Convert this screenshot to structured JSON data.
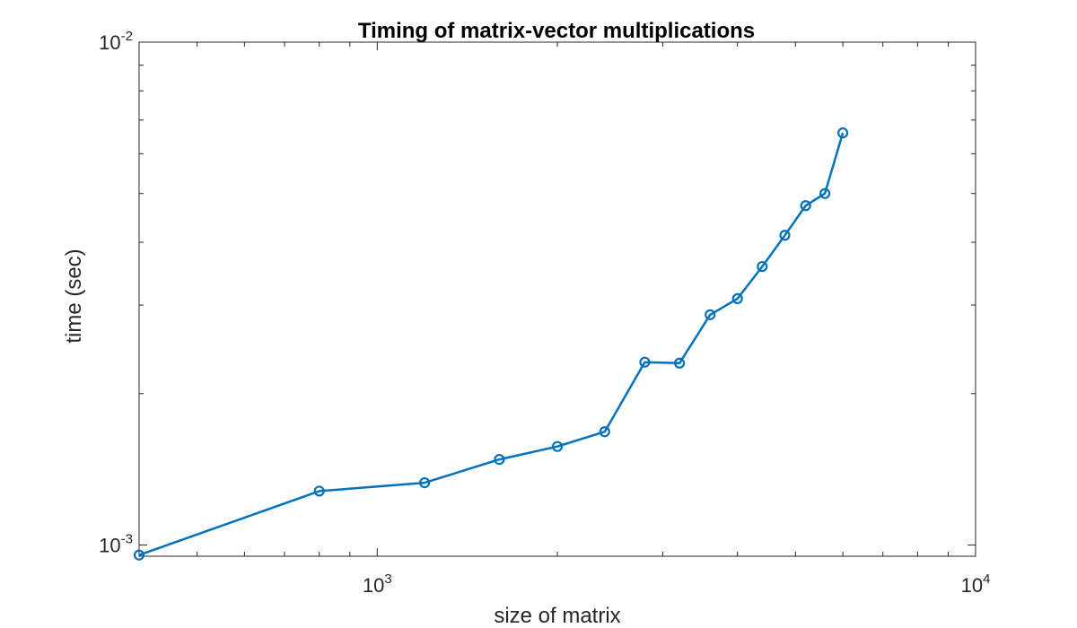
{
  "chart_data": {
    "type": "line",
    "title": "Timing of matrix-vector multiplications",
    "xlabel": "size of matrix",
    "ylabel": "time (sec)",
    "xscale": "log",
    "yscale": "log",
    "xlim": [
      400,
      10000
    ],
    "ylim": [
      0.00095,
      0.01
    ],
    "grid": false,
    "legend": "none",
    "x_tick_labels": [
      {
        "value": 1000,
        "base": "10",
        "exp": "3"
      },
      {
        "value": 10000,
        "base": "10",
        "exp": "4"
      }
    ],
    "y_tick_labels": [
      {
        "value": 0.001,
        "base": "10",
        "exp": "-3"
      },
      {
        "value": 0.01,
        "base": "10",
        "exp": "-2"
      }
    ],
    "series": [
      {
        "color": "#0072BD",
        "marker": "circle",
        "x": [
          400,
          800,
          1200,
          1600,
          2000,
          2400,
          2800,
          3200,
          3600,
          4000,
          4400,
          4800,
          5200,
          5600,
          6000
        ],
        "y": [
          0.000955,
          0.00128,
          0.00133,
          0.00148,
          0.00157,
          0.00168,
          0.00231,
          0.0023,
          0.00287,
          0.00309,
          0.00358,
          0.00413,
          0.00473,
          0.005,
          0.0066
        ]
      }
    ]
  }
}
